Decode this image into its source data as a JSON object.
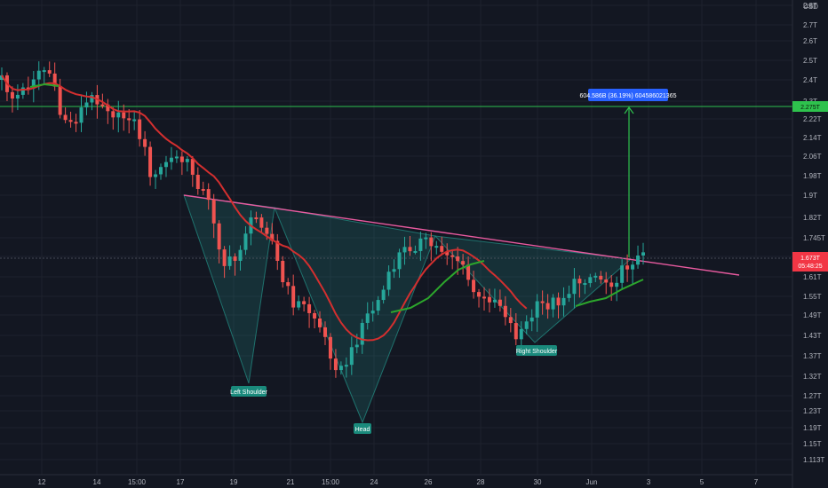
{
  "chart_data": {
    "type": "candlestick",
    "currency_label": "USD",
    "y_ticks": [
      "2.8T",
      "2.7T",
      "2.6T",
      "2.5T",
      "2.4T",
      "2.3T",
      "2.22T",
      "2.14T",
      "2.06T",
      "1.98T",
      "1.9T",
      "1.82T",
      "1.745T",
      "1.67T",
      "1.61T",
      "1.55T",
      "1.49T",
      "1.43T",
      "1.37T",
      "1.32T",
      "1.27T",
      "1.23T",
      "1.19T",
      "1.15T",
      "1.113T"
    ],
    "x_ticks": [
      "12",
      "14",
      "15:00",
      "17",
      "19",
      "21",
      "15:00",
      "24",
      "26",
      "28",
      "30",
      "Jun",
      "3",
      "5",
      "7"
    ],
    "colors": {
      "background": "#131722",
      "grid": "#1e222d",
      "up": "#26a69a",
      "down": "#ef5350",
      "ma_red": "#d32f2f",
      "ma_green": "#2ca62c",
      "neckline": "#e85a9f",
      "target_line": "#2ec24d",
      "pattern_fill": "#26a69a",
      "price_tag": "#f23645",
      "label_bg": "#1a8a7c",
      "measure_bg": "#2962ff"
    },
    "target_level": {
      "label": "2.275T"
    },
    "current_price": {
      "label": "1.673T",
      "countdown": "05:48:25"
    },
    "measurement_label": "604.586B (36.19%) 604586021365",
    "annotations": [
      {
        "name": "left-shoulder",
        "text": "Left Shoulder"
      },
      {
        "name": "head",
        "text": "Head"
      },
      {
        "name": "right-shoulder",
        "text": "Right Shoulder"
      }
    ]
  }
}
